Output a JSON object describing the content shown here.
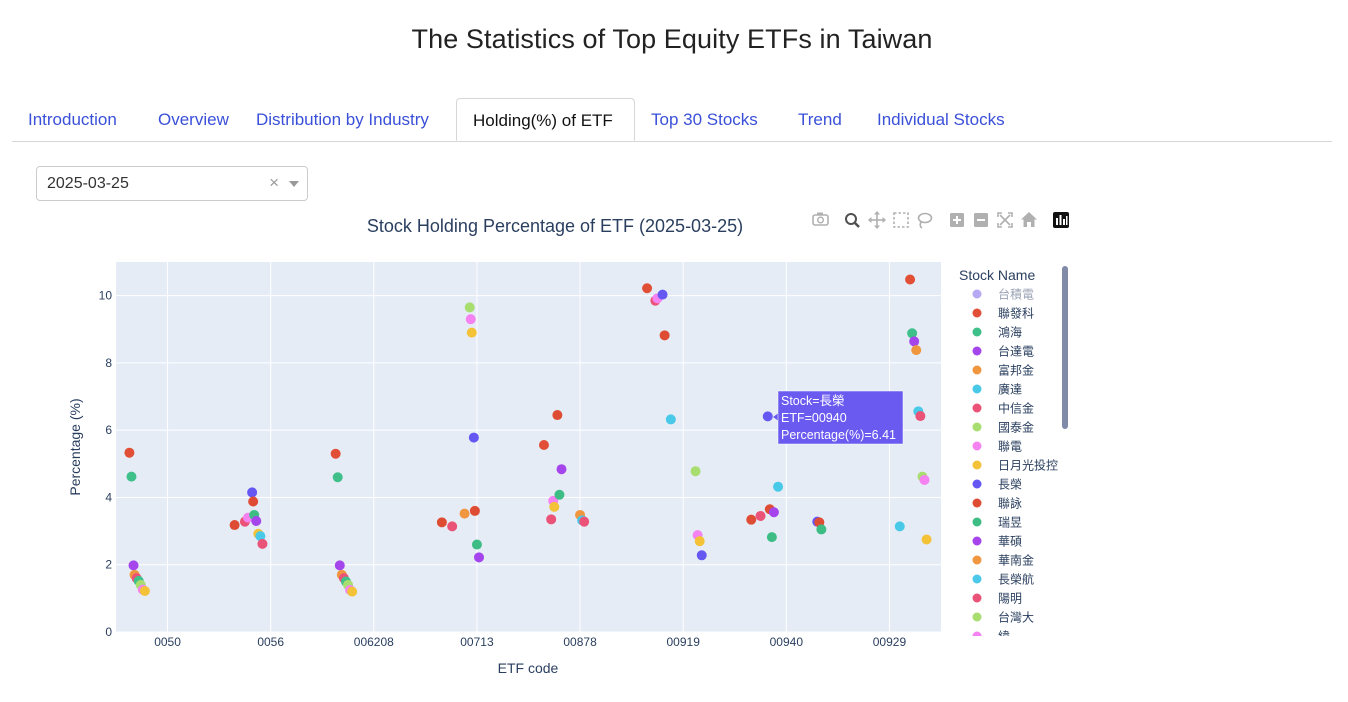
{
  "page": {
    "title": "The Statistics of Top Equity ETFs in Taiwan"
  },
  "tabs": [
    {
      "label": "Introduction",
      "active": false
    },
    {
      "label": "Overview",
      "active": false
    },
    {
      "label": "Distribution by Industry",
      "active": false
    },
    {
      "label": "Holding(%) of ETF",
      "active": true
    },
    {
      "label": "Top 30 Stocks",
      "active": false
    },
    {
      "label": "Trend",
      "active": false
    },
    {
      "label": "Individual Stocks",
      "active": false
    }
  ],
  "date_select": {
    "value": "2025-03-25",
    "clear_symbol": "×"
  },
  "modebar": [
    "camera-icon",
    "zoom-icon",
    "pan-icon",
    "box-select-icon",
    "lasso-icon",
    "zoom-in-icon",
    "zoom-out-icon",
    "autoscale-icon",
    "reset-axes-icon",
    "plotly-logo-icon"
  ],
  "tooltip": {
    "lines": [
      "Stock=長榮",
      "ETF=00940",
      "Percentage(%)=6.41"
    ],
    "color": "#6a5af0"
  },
  "chart_data": {
    "type": "scatter",
    "title": "Stock Holding Percentage of ETF (2025-03-25)",
    "xlabel": "ETF code",
    "ylabel": "Percentage (%)",
    "ylim": [
      0,
      11
    ],
    "xlim": [
      -0.5,
      7.5
    ],
    "y_ticks": [
      0,
      2,
      4,
      6,
      8,
      10
    ],
    "x_tick_labels": [
      "0050",
      "0056",
      "006208",
      "00713",
      "00878",
      "00919",
      "00940",
      "00929"
    ],
    "grid": true,
    "plot_bg": "#e5ecf6",
    "legend": {
      "title": "Stock Name",
      "placement": "right",
      "entries": [
        {
          "name": "台積電",
          "color": "#b6a8f3",
          "faded": true
        },
        {
          "name": "聯發科",
          "color": "#e04f36"
        },
        {
          "name": "鴻海",
          "color": "#3fbf8a"
        },
        {
          "name": "台達電",
          "color": "#a545ec"
        },
        {
          "name": "富邦金",
          "color": "#f0963f"
        },
        {
          "name": "廣達",
          "color": "#49c9e8"
        },
        {
          "name": "中信金",
          "color": "#ea5377"
        },
        {
          "name": "國泰金",
          "color": "#a8dd6f"
        },
        {
          "name": "聯電",
          "color": "#f482f0"
        },
        {
          "name": "日月光投控",
          "color": "#f3c237"
        },
        {
          "name": "長榮",
          "color": "#6457f2"
        },
        {
          "name": "聯詠",
          "color": "#de4c34"
        },
        {
          "name": "瑞昱",
          "color": "#3dbd84"
        },
        {
          "name": "華碩",
          "color": "#a544ec"
        },
        {
          "name": "華南金",
          "color": "#f0963f"
        },
        {
          "name": "長榮航",
          "color": "#4bc8ea"
        },
        {
          "name": "陽明",
          "color": "#ea5378"
        },
        {
          "name": "台灣大",
          "color": "#a9dd6f"
        },
        {
          "name": "緯",
          "color": "#f482f0",
          "clipped": true
        }
      ]
    },
    "points": [
      {
        "x": -0.37,
        "y": 5.33,
        "color": "#e04f36"
      },
      {
        "x": -0.35,
        "y": 4.62,
        "color": "#3fbf8a"
      },
      {
        "x": -0.33,
        "y": 1.98,
        "color": "#a545ec"
      },
      {
        "x": -0.32,
        "y": 1.7,
        "color": "#f0963f"
      },
      {
        "x": -0.3,
        "y": 1.6,
        "color": "#ea5377"
      },
      {
        "x": -0.28,
        "y": 1.52,
        "color": "#3fbf8a"
      },
      {
        "x": -0.26,
        "y": 1.4,
        "color": "#a8dd6f"
      },
      {
        "x": -0.24,
        "y": 1.26,
        "color": "#f482f0"
      },
      {
        "x": -0.22,
        "y": 1.22,
        "color": "#f3c237"
      },
      {
        "x": 0.65,
        "y": 3.18,
        "color": "#de4c34"
      },
      {
        "x": 0.75,
        "y": 3.28,
        "color": "#ea5377"
      },
      {
        "x": 0.78,
        "y": 3.4,
        "color": "#f482f0"
      },
      {
        "x": 0.82,
        "y": 4.15,
        "color": "#6457f2"
      },
      {
        "x": 0.83,
        "y": 3.88,
        "color": "#de4c34"
      },
      {
        "x": 0.84,
        "y": 3.48,
        "color": "#3dbd84"
      },
      {
        "x": 0.86,
        "y": 3.3,
        "color": "#a545ec"
      },
      {
        "x": 0.88,
        "y": 2.92,
        "color": "#f3c237"
      },
      {
        "x": 0.9,
        "y": 2.85,
        "color": "#49c9e8"
      },
      {
        "x": 0.92,
        "y": 2.62,
        "color": "#ea5378"
      },
      {
        "x": 1.63,
        "y": 5.3,
        "color": "#e04f36"
      },
      {
        "x": 1.65,
        "y": 4.6,
        "color": "#3fbf8a"
      },
      {
        "x": 1.67,
        "y": 1.98,
        "color": "#a545ec"
      },
      {
        "x": 1.69,
        "y": 1.7,
        "color": "#f0963f"
      },
      {
        "x": 1.71,
        "y": 1.6,
        "color": "#ea5377"
      },
      {
        "x": 1.73,
        "y": 1.5,
        "color": "#3fbf8a"
      },
      {
        "x": 1.75,
        "y": 1.4,
        "color": "#a8dd6f"
      },
      {
        "x": 1.77,
        "y": 1.25,
        "color": "#f482f0"
      },
      {
        "x": 1.79,
        "y": 1.2,
        "color": "#f3c237"
      },
      {
        "x": 2.66,
        "y": 3.26,
        "color": "#de4c34"
      },
      {
        "x": 2.76,
        "y": 3.14,
        "color": "#ea5377"
      },
      {
        "x": 2.88,
        "y": 3.52,
        "color": "#f0963f"
      },
      {
        "x": 2.93,
        "y": 9.65,
        "color": "#a8dd6f"
      },
      {
        "x": 2.94,
        "y": 9.3,
        "color": "#f482f0"
      },
      {
        "x": 2.95,
        "y": 8.9,
        "color": "#f3c237"
      },
      {
        "x": 2.97,
        "y": 5.78,
        "color": "#6457f2"
      },
      {
        "x": 2.98,
        "y": 3.6,
        "color": "#de4c34"
      },
      {
        "x": 3.0,
        "y": 2.6,
        "color": "#3dbd84"
      },
      {
        "x": 3.02,
        "y": 2.22,
        "color": "#a544ec"
      },
      {
        "x": 3.65,
        "y": 5.56,
        "color": "#e04f36"
      },
      {
        "x": 3.72,
        "y": 3.35,
        "color": "#ea5377"
      },
      {
        "x": 3.74,
        "y": 3.9,
        "color": "#f482f0"
      },
      {
        "x": 3.75,
        "y": 3.72,
        "color": "#f3c237"
      },
      {
        "x": 3.78,
        "y": 6.45,
        "color": "#de4c34"
      },
      {
        "x": 3.8,
        "y": 4.08,
        "color": "#3dbd84"
      },
      {
        "x": 3.82,
        "y": 4.84,
        "color": "#a545ec"
      },
      {
        "x": 4.0,
        "y": 3.48,
        "color": "#f0963f"
      },
      {
        "x": 4.02,
        "y": 3.32,
        "color": "#49c9e8"
      },
      {
        "x": 4.04,
        "y": 3.28,
        "color": "#ea5377"
      },
      {
        "x": 4.65,
        "y": 10.22,
        "color": "#e04f36"
      },
      {
        "x": 4.73,
        "y": 9.85,
        "color": "#ea5377"
      },
      {
        "x": 4.75,
        "y": 9.92,
        "color": "#f482f0"
      },
      {
        "x": 4.8,
        "y": 10.03,
        "color": "#6457f2"
      },
      {
        "x": 4.82,
        "y": 8.82,
        "color": "#de4c34"
      },
      {
        "x": 4.88,
        "y": 6.32,
        "color": "#49c9e8"
      },
      {
        "x": 5.12,
        "y": 4.78,
        "color": "#a8dd6f"
      },
      {
        "x": 5.14,
        "y": 2.88,
        "color": "#f482f0"
      },
      {
        "x": 5.16,
        "y": 2.7,
        "color": "#f3c237"
      },
      {
        "x": 5.18,
        "y": 2.28,
        "color": "#6457f2"
      },
      {
        "x": 5.66,
        "y": 3.34,
        "color": "#de4c34"
      },
      {
        "x": 5.75,
        "y": 3.45,
        "color": "#ea5377"
      },
      {
        "x": 5.82,
        "y": 6.41,
        "color": "#6457f2"
      },
      {
        "x": 5.84,
        "y": 3.65,
        "color": "#de4c34"
      },
      {
        "x": 5.86,
        "y": 2.82,
        "color": "#3dbd84"
      },
      {
        "x": 5.88,
        "y": 3.56,
        "color": "#a544ec"
      },
      {
        "x": 5.92,
        "y": 4.32,
        "color": "#49c9e8"
      },
      {
        "x": 6.3,
        "y": 3.28,
        "color": "#6457f2"
      },
      {
        "x": 6.32,
        "y": 3.26,
        "color": "#de4c34"
      },
      {
        "x": 6.34,
        "y": 3.05,
        "color": "#3dbd84"
      },
      {
        "x": 7.1,
        "y": 3.14,
        "color": "#49c9e8"
      },
      {
        "x": 7.2,
        "y": 10.48,
        "color": "#e04f36"
      },
      {
        "x": 7.22,
        "y": 8.88,
        "color": "#3fbf8a"
      },
      {
        "x": 7.24,
        "y": 8.64,
        "color": "#a545ec"
      },
      {
        "x": 7.26,
        "y": 8.38,
        "color": "#f0963f"
      },
      {
        "x": 7.28,
        "y": 6.56,
        "color": "#49c9e8"
      },
      {
        "x": 7.3,
        "y": 6.42,
        "color": "#ea5377"
      },
      {
        "x": 7.32,
        "y": 4.62,
        "color": "#a8dd6f"
      },
      {
        "x": 7.34,
        "y": 4.52,
        "color": "#f482f0"
      },
      {
        "x": 7.36,
        "y": 2.75,
        "color": "#f3c237"
      }
    ]
  }
}
